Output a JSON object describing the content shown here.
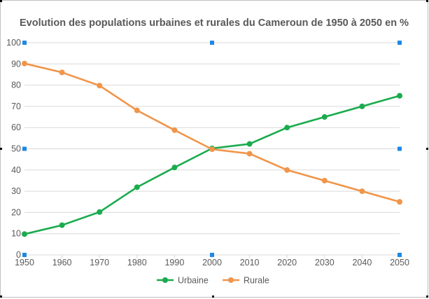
{
  "chart_data": {
    "type": "line",
    "title": "Evolution des populations urbaines et rurales du Cameroun de 1950 à 2050 en %",
    "xlabel": "",
    "ylabel": "",
    "x": [
      1950,
      1960,
      1970,
      1980,
      1990,
      2000,
      2010,
      2020,
      2030,
      2040,
      2050
    ],
    "x_tick_labels": [
      "1950",
      "1960",
      "1970",
      "1980",
      "1990",
      "2000",
      "2010",
      "2020",
      "2030",
      "2040",
      "2050"
    ],
    "y_tick_labels": [
      "0",
      "10",
      "20",
      "30",
      "40",
      "50",
      "60",
      "70",
      "80",
      "90",
      "100"
    ],
    "ylim": [
      0,
      100
    ],
    "grid": true,
    "legend_position": "bottom",
    "series": [
      {
        "name": "Urbaine",
        "color": "#1aab4d",
        "values": [
          9.8,
          14,
          20.2,
          31.9,
          41.2,
          50.2,
          52.3,
          60,
          65,
          70,
          75
        ]
      },
      {
        "name": "Rurale",
        "color": "#f0954a",
        "values": [
          90.2,
          86,
          79.8,
          68.1,
          58.8,
          49.8,
          47.7,
          40,
          35,
          30,
          25
        ]
      }
    ]
  },
  "colors": {
    "gridline": "#d9d9d9",
    "axis_text": "#595959",
    "selection_handle": "#1e88e5",
    "frame_border": "#000000"
  }
}
